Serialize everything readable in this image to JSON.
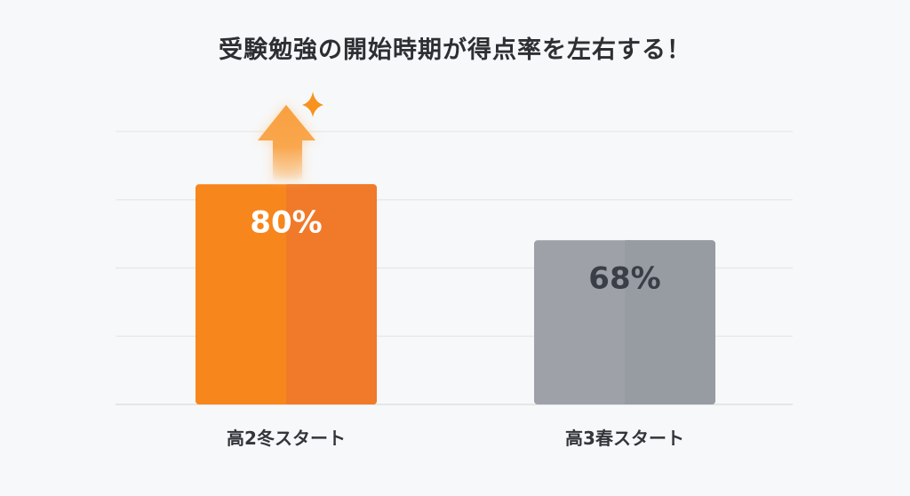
{
  "chart_data": {
    "type": "bar",
    "title": "受験勉強の開始時期が得点率を左右する！",
    "categories": [
      "高2冬スタート",
      "高3春スタート"
    ],
    "values": [
      80,
      68
    ],
    "data_labels": [
      "80%",
      "68%"
    ],
    "ylim": [
      32.8,
      91.3
    ],
    "grid": true,
    "colors": [
      "#f7861c",
      "#9ea2a8"
    ],
    "label_colors": [
      "#ffffff",
      "#3a3f47"
    ],
    "annotation_icons": [
      "up-arrow-icon",
      "sparkle-icon"
    ]
  }
}
